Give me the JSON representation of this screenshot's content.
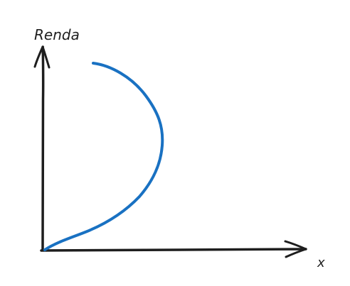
{
  "diagram": {
    "y_axis_label": "Renda",
    "x_axis_label": "x"
  },
  "colors": {
    "background": "#ffffff",
    "axis": "#1e1e1e",
    "curve": "#1971c2"
  }
}
